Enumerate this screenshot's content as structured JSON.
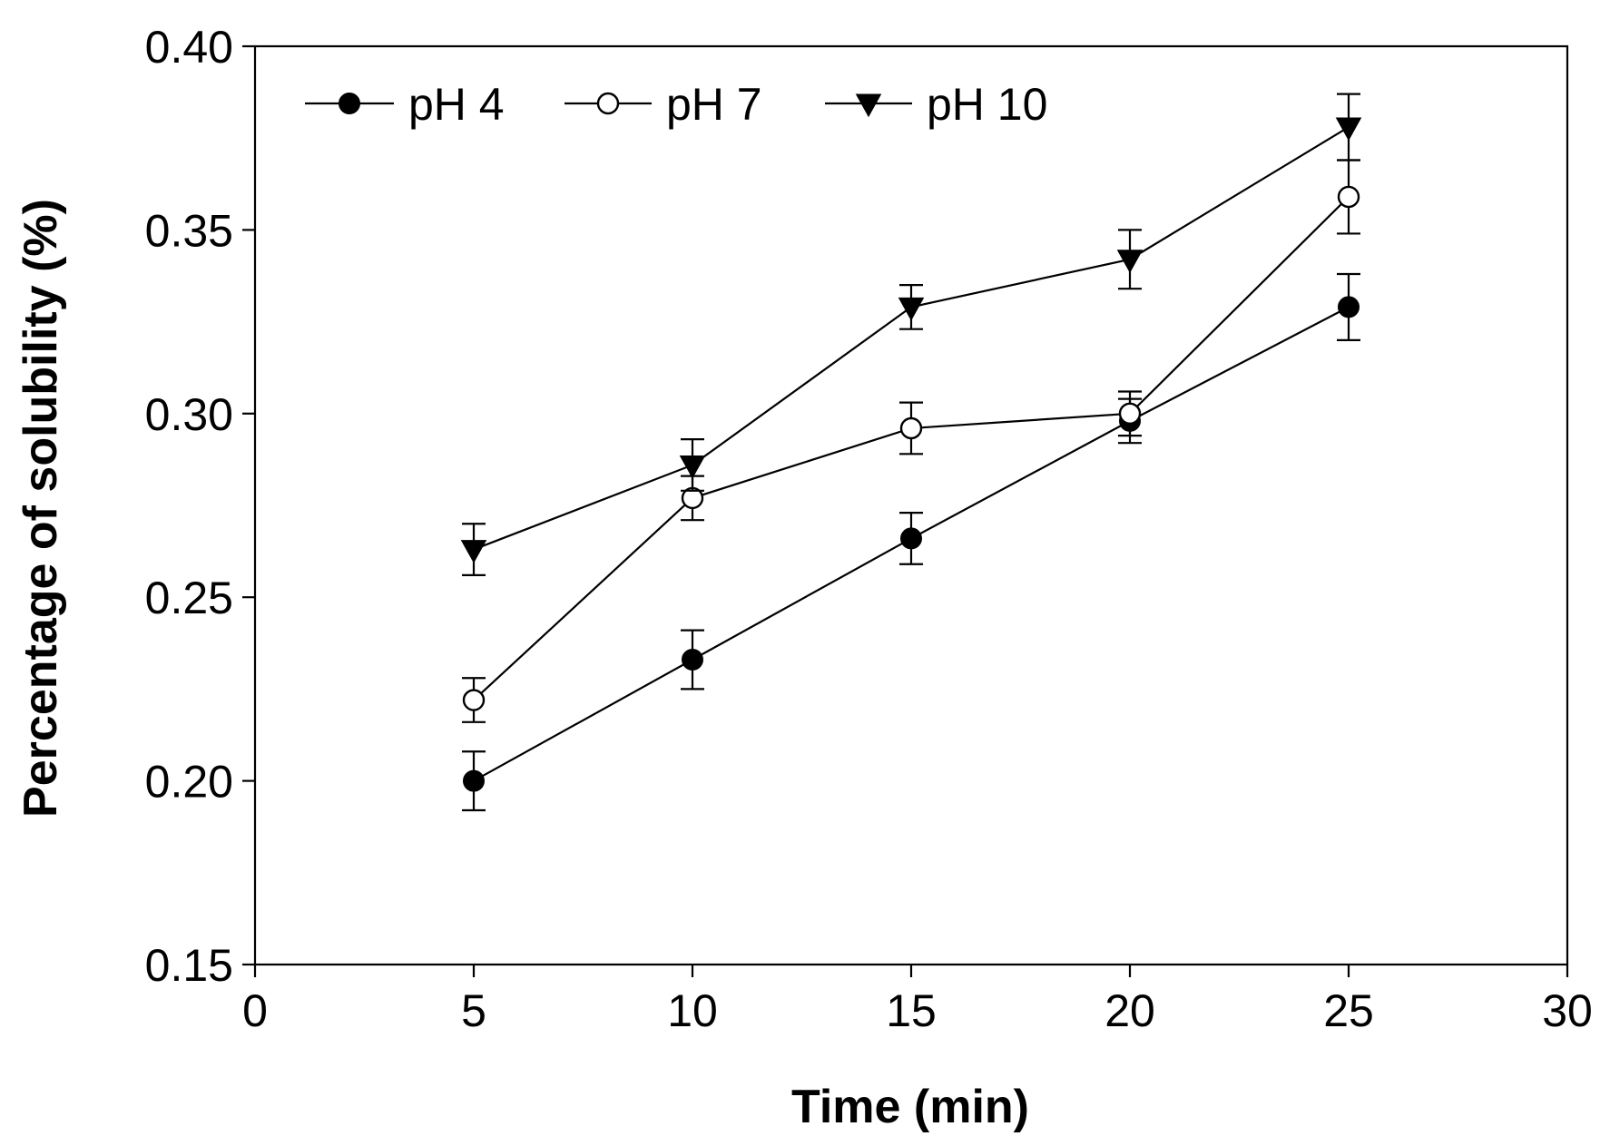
{
  "chart_data": {
    "type": "line",
    "title": "",
    "xlabel": "Time (min)",
    "ylabel": "Percentage of solubility (%)",
    "xlim": [
      0,
      30
    ],
    "ylim": [
      0.15,
      0.4
    ],
    "xticks": [
      0,
      5,
      10,
      15,
      20,
      25,
      30
    ],
    "xtick_labels": [
      "0",
      "5",
      "10",
      "15",
      "20",
      "25",
      "30"
    ],
    "yticks": [
      0.15,
      0.2,
      0.25,
      0.3,
      0.35,
      0.4
    ],
    "ytick_labels": [
      "0.15",
      "0.20",
      "0.25",
      "0.30",
      "0.35",
      "0.40"
    ],
    "grid": false,
    "legend_position": "top-left",
    "x": [
      5,
      10,
      15,
      20,
      25
    ],
    "series": [
      {
        "name": "pH 4",
        "marker": "filled-circle",
        "values": [
          0.2,
          0.233,
          0.266,
          0.298,
          0.329
        ],
        "errors": [
          0.008,
          0.008,
          0.007,
          0.006,
          0.009
        ]
      },
      {
        "name": "pH 7",
        "marker": "open-circle",
        "values": [
          0.222,
          0.277,
          0.296,
          0.3,
          0.359
        ],
        "errors": [
          0.006,
          0.006,
          0.007,
          0.006,
          0.01
        ]
      },
      {
        "name": "pH 10",
        "marker": "filled-triangle-down",
        "values": [
          0.263,
          0.286,
          0.329,
          0.342,
          0.378
        ],
        "errors": [
          0.007,
          0.007,
          0.006,
          0.008,
          0.009
        ]
      }
    ],
    "colors": {
      "line": "#000000",
      "background": "#ffffff"
    }
  }
}
